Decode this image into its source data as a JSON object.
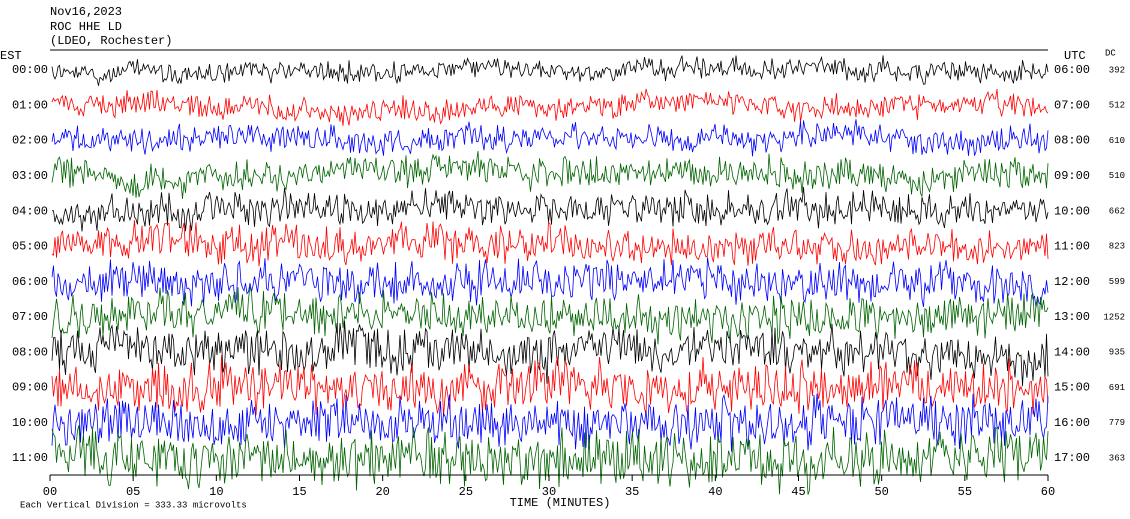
{
  "chart_data": {
    "type": "helicorder",
    "title_lines": [
      "Nov16,2023",
      "ROC HHE LD",
      "(LDEO, Rochester)"
    ],
    "left_label": "EST",
    "right_label": "UTC",
    "dc_label": "DC",
    "xlabel": "TIME (MINUTES)",
    "footer": "Each Vertical Division = 333.33 microvolts",
    "xlim": [
      0,
      60
    ],
    "xticks": [
      {
        "value": 0,
        "label": "00"
      },
      {
        "value": 5,
        "label": "05"
      },
      10,
      15,
      20,
      25,
      30,
      35,
      40,
      45,
      50,
      55,
      60
    ],
    "colors": [
      "#000000",
      "#ff0000",
      "#0000ff",
      "#006400"
    ],
    "rows": [
      {
        "est": "00:00",
        "utc": "06:00",
        "dc": 392
      },
      {
        "est": "01:00",
        "utc": "07:00",
        "dc": 512
      },
      {
        "est": "02:00",
        "utc": "08:00",
        "dc": 610
      },
      {
        "est": "03:00",
        "utc": "09:00",
        "dc": 510
      },
      {
        "est": "04:00",
        "utc": "10:00",
        "dc": 662
      },
      {
        "est": "05:00",
        "utc": "11:00",
        "dc": 823
      },
      {
        "est": "06:00",
        "utc": "12:00",
        "dc": 599
      },
      {
        "est": "07:00",
        "utc": "13:00",
        "dc": 1252
      },
      {
        "est": "08:00",
        "utc": "14:00",
        "dc": 935
      },
      {
        "est": "09:00",
        "utc": "15:00",
        "dc": 691
      },
      {
        "est": "10:00",
        "utc": "16:00",
        "dc": 779
      },
      {
        "est": "11:00",
        "utc": "17:00",
        "dc": 363
      }
    ]
  }
}
